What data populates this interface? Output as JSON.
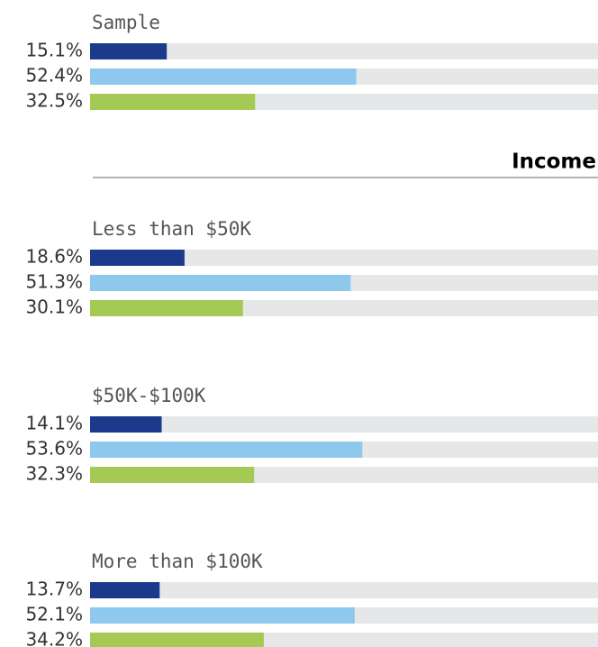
{
  "chart_data": {
    "type": "bar",
    "orientation": "horizontal",
    "categories": [
      "Sample",
      "Less than $50K",
      "$50K-$100K",
      "More than $100K"
    ],
    "annotations": [
      "Income"
    ],
    "xlim": [
      0,
      100
    ],
    "series": [
      {
        "color": "#1b3a8c",
        "values": [
          15.1,
          18.6,
          14.1,
          13.7
        ],
        "value_labels": [
          "15.1%",
          "18.6%",
          "14.1%",
          "13.7%"
        ]
      },
      {
        "color": "#8ec8ec",
        "values": [
          52.4,
          51.3,
          53.6,
          52.1
        ],
        "value_labels": [
          "52.4%",
          "51.3%",
          "53.6%",
          "52.1%"
        ]
      },
      {
        "color": "#a5c955",
        "values": [
          32.5,
          30.1,
          32.3,
          34.2
        ],
        "value_labels": [
          "32.5%",
          "30.1%",
          "32.3%",
          "34.2%"
        ]
      }
    ]
  }
}
